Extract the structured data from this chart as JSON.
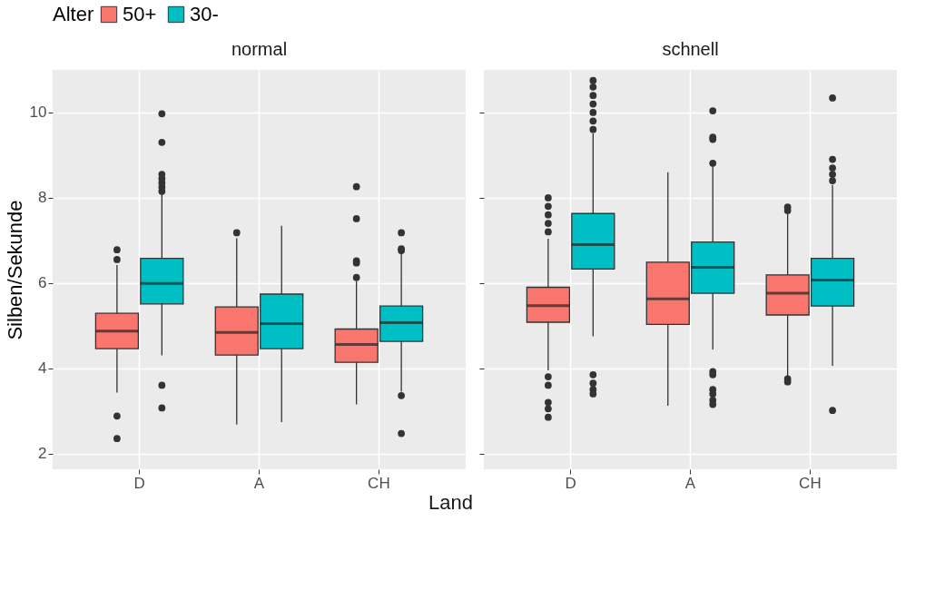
{
  "chart_data": [
    {
      "type": "box",
      "title": "normal",
      "xlabel": "Land",
      "ylabel": "Silben/Sekunde",
      "legend_title": "Alter",
      "legend": "top",
      "grid": true,
      "categories": [
        "D",
        "A",
        "CH"
      ],
      "ylim": [
        1.63,
        11.0
      ],
      "yticks": [
        2,
        4,
        6,
        8,
        10
      ],
      "series": [
        {
          "name": "50+",
          "color": "#f8766d",
          "boxes": [
            {
              "low": 3.43,
              "q1": 4.46,
              "median": 4.87,
              "q3": 5.29,
              "high": 6.42,
              "outliers": [
                6.55,
                6.78,
                2.88,
                2.35
              ]
            },
            {
              "low": 2.68,
              "q1": 4.31,
              "median": 4.84,
              "q3": 5.44,
              "high": 7.05,
              "outliers": [
                7.18
              ]
            },
            {
              "low": 3.15,
              "q1": 4.14,
              "median": 4.56,
              "q3": 4.92,
              "high": 6.05,
              "outliers": [
                6.13,
                6.47,
                6.52,
                7.51,
                8.26
              ]
            }
          ]
        },
        {
          "name": "30-",
          "color": "#00bfc4",
          "boxes": [
            {
              "low": 4.3,
              "q1": 5.51,
              "median": 5.99,
              "q3": 6.58,
              "high": 8.08,
              "outliers": [
                8.15,
                8.25,
                8.35,
                8.45,
                8.55,
                9.3,
                9.97,
                3.6,
                3.07
              ]
            },
            {
              "low": 2.74,
              "q1": 4.46,
              "median": 5.05,
              "q3": 5.74,
              "high": 7.34
            },
            {
              "low": 3.45,
              "q1": 4.63,
              "median": 5.07,
              "q3": 5.46,
              "high": 6.7,
              "outliers": [
                6.76,
                6.8,
                7.18,
                3.36,
                2.47
              ]
            }
          ]
        }
      ]
    },
    {
      "type": "box",
      "title": "schnell",
      "grid": true,
      "tick_labels": "x",
      "categories": [
        "D",
        "A",
        "CH"
      ],
      "ylim": [
        1.63,
        11.0
      ],
      "yticks": [
        2,
        4,
        6,
        8,
        10
      ],
      "series": [
        {
          "name": "50+",
          "color": "#f8766d",
          "boxes": [
            {
              "low": 3.95,
              "q1": 5.08,
              "median": 5.47,
              "q3": 5.9,
              "high": 7.04,
              "outliers": [
                7.2,
                7.4,
                7.6,
                7.8,
                8.0,
                3.8,
                3.6,
                3.2,
                3.05,
                2.85
              ]
            },
            {
              "low": 3.12,
              "q1": 5.03,
              "median": 5.63,
              "q3": 6.49,
              "high": 8.6
            },
            {
              "low": 3.8,
              "q1": 5.25,
              "median": 5.76,
              "q3": 6.19,
              "high": 7.65,
              "outliers": [
                7.7,
                7.78,
                3.75,
                3.68
              ]
            }
          ]
        },
        {
          "name": "30-",
          "color": "#00bfc4",
          "boxes": [
            {
              "low": 4.75,
              "q1": 6.33,
              "median": 6.9,
              "q3": 7.63,
              "high": 9.51,
              "outliers": [
                9.6,
                9.8,
                10.0,
                10.2,
                10.4,
                10.6,
                10.75,
                3.85,
                3.65,
                3.5,
                3.4
              ]
            },
            {
              "low": 4.44,
              "q1": 5.76,
              "median": 6.37,
              "q3": 6.96,
              "high": 8.75,
              "outliers": [
                8.81,
                9.37,
                9.42,
                10.04,
                3.92,
                3.85,
                3.5,
                3.4,
                3.25,
                3.15
              ]
            },
            {
              "low": 4.06,
              "q1": 5.46,
              "median": 6.07,
              "q3": 6.58,
              "high": 8.3,
              "outliers": [
                8.4,
                8.55,
                8.7,
                8.9,
                10.34,
                3.01
              ]
            }
          ]
        }
      ]
    }
  ]
}
